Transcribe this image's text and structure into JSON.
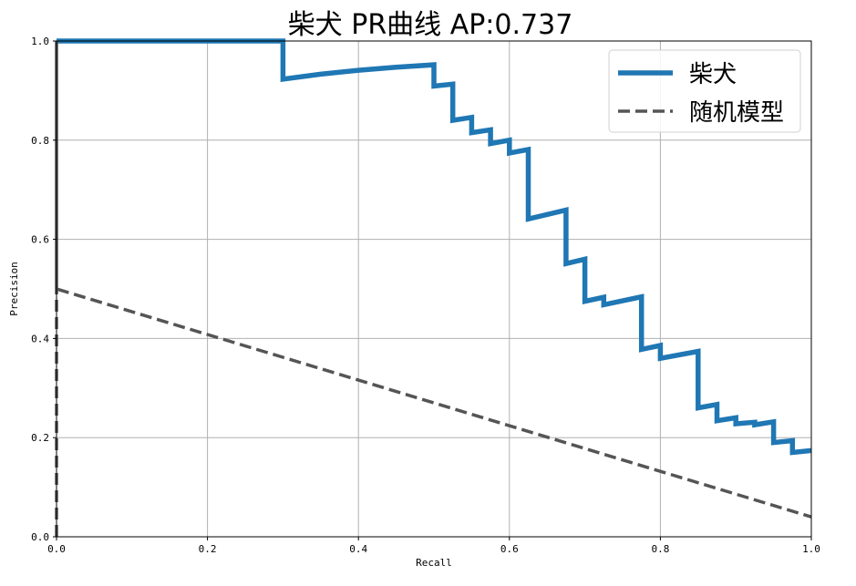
{
  "chart_data": {
    "type": "line",
    "title": "柴犬 PR曲线  AP:0.737",
    "xlabel": "Recall",
    "ylabel": "Precision",
    "xlim": [
      0,
      1
    ],
    "ylim": [
      0,
      1
    ],
    "xticks": [
      0,
      0.2,
      0.4,
      0.6,
      0.8,
      1.0
    ],
    "xtick_labels": [
      "0.0",
      "0.2",
      "0.4",
      "0.6",
      "0.8",
      "1.0"
    ],
    "yticks": [
      0,
      0.2,
      0.4,
      0.6,
      0.8,
      1.0
    ],
    "ytick_labels": [
      "0.0",
      "0.2",
      "0.4",
      "0.6",
      "0.8",
      "1.0"
    ],
    "grid": true,
    "legend_position": "top-right",
    "series": [
      {
        "name": "柴犬",
        "style": "solid",
        "color": "#1f77b4",
        "x": [
          0.0,
          0.3,
          0.3,
          0.35,
          0.4,
          0.45,
          0.5,
          0.5,
          0.525,
          0.525,
          0.55,
          0.55,
          0.575,
          0.575,
          0.6,
          0.6,
          0.625,
          0.625,
          0.675,
          0.675,
          0.7,
          0.7,
          0.725,
          0.725,
          0.775,
          0.775,
          0.8,
          0.8,
          0.85,
          0.85,
          0.875,
          0.875,
          0.9,
          0.9,
          0.925,
          0.925,
          0.95,
          0.95,
          0.975,
          0.975,
          1.0
        ],
        "y": [
          1.0,
          1.0,
          0.923,
          0.933,
          0.941,
          0.947,
          0.952,
          0.909,
          0.913,
          0.84,
          0.846,
          0.815,
          0.821,
          0.793,
          0.8,
          0.774,
          0.781,
          0.641,
          0.659,
          0.551,
          0.56,
          0.475,
          0.483,
          0.468,
          0.484,
          0.378,
          0.386,
          0.36,
          0.374,
          0.26,
          0.267,
          0.234,
          0.24,
          0.228,
          0.231,
          0.226,
          0.232,
          0.19,
          0.194,
          0.17,
          0.174
        ]
      },
      {
        "name": "随机模型",
        "style": "dashed",
        "color": "#555555",
        "x": [
          0.0,
          0.0,
          0.0,
          1.0
        ],
        "y": [
          0.0,
          1.0,
          0.5,
          0.04
        ]
      }
    ]
  }
}
